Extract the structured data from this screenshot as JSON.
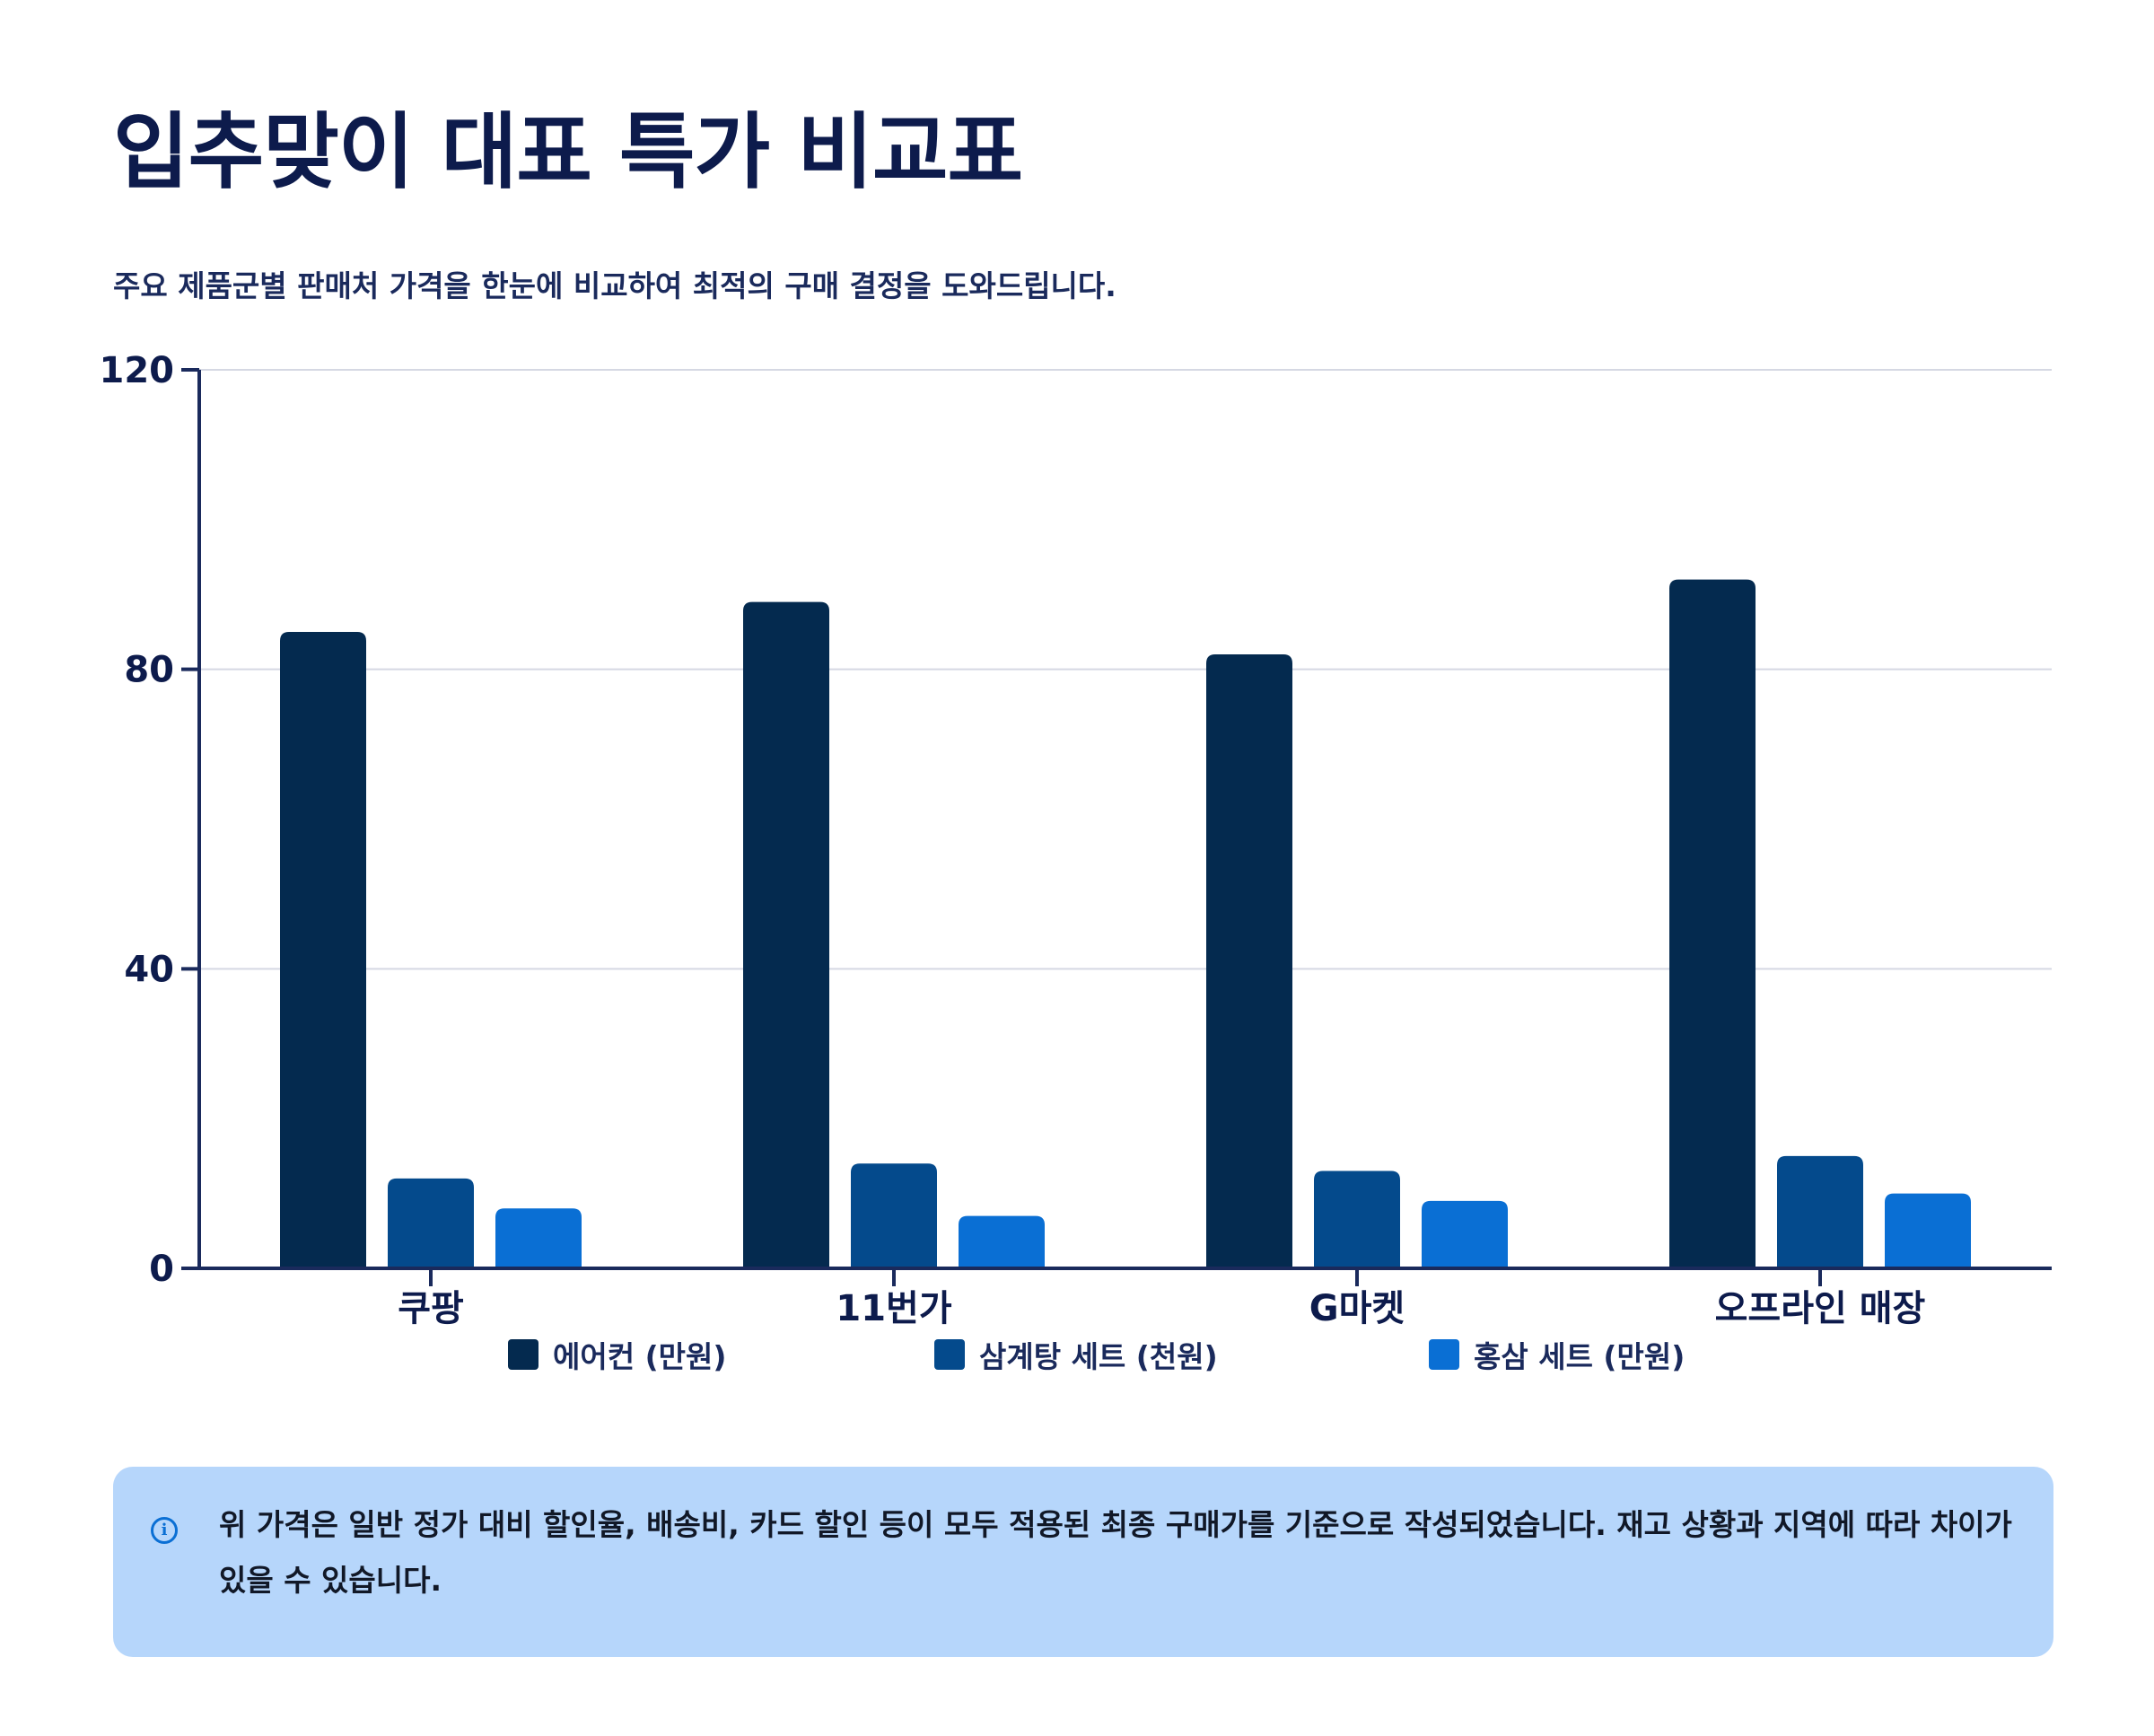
{
  "title": "입추맞이 대표 특가 비교표",
  "subtitle": "주요 제품군별 판매처 가격을 한눈에 비교하여 최적의 구매 결정을 도와드립니다.",
  "chart_data": {
    "type": "bar",
    "categories": [
      "쿠팡",
      "11번가",
      "G마켓",
      "오프라인 매장"
    ],
    "series": [
      {
        "name": "에어컨 (만원)",
        "values": [
          85,
          89,
          82,
          92
        ],
        "color": "#042a4f"
      },
      {
        "name": "삼계탕 세트 (천원)",
        "values": [
          12,
          14,
          13,
          15
        ],
        "color": "#044a8c"
      },
      {
        "name": "홍삼 세트 (만원)",
        "values": [
          8,
          7,
          9,
          10
        ],
        "color": "#0a6fd4"
      }
    ],
    "ylim": [
      0,
      120
    ],
    "yticks": [
      0,
      40,
      80,
      120
    ],
    "grid": true,
    "legend_position": "bottom"
  },
  "note": {
    "icon": "info-icon",
    "text": "위 가격은 일반 정가 대비 할인율, 배송비, 카드 할인 등이 모두 적용된 최종 구매가를 기준으로 작성되었습니다. 재고 상황과 지역에 따라 차이가 있을 수 있습니다.",
    "background": "#b6d6fb"
  }
}
